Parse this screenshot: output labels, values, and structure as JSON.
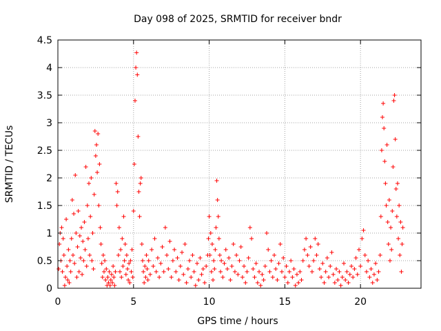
{
  "chart_data": {
    "type": "scatter",
    "title": "Day 098 of 2025, SRMTID for receiver bndr",
    "xlabel": "GPS time / hours",
    "ylabel": "SRMTID / TECUs",
    "xlim": [
      0,
      24
    ],
    "ylim": [
      0,
      4.5
    ],
    "xticks": [
      0,
      5,
      10,
      15,
      20
    ],
    "xtick_labels": [
      "0",
      "5",
      "10",
      "15",
      "20"
    ],
    "yticks": [
      0,
      0.5,
      1,
      1.5,
      2,
      2.5,
      3,
      3.5,
      4,
      4.5
    ],
    "ytick_labels": [
      "0",
      "0.5",
      "1",
      "1.5",
      "2",
      "2.5",
      "3",
      "3.5",
      "4",
      "4.5"
    ],
    "grid": true,
    "marker": "plus",
    "series": [
      {
        "name": "SRMTID",
        "color": "#ff0000",
        "points": [
          [
            0.05,
            0.35
          ],
          [
            0.1,
            0.8
          ],
          [
            0.15,
            1.0
          ],
          [
            0.2,
            0.5
          ],
          [
            0.25,
            1.1
          ],
          [
            0.3,
            0.3
          ],
          [
            0.35,
            0.9
          ],
          [
            0.4,
            0.6
          ],
          [
            0.45,
            0.05
          ],
          [
            0.5,
            0.2
          ],
          [
            0.55,
            1.25
          ],
          [
            0.6,
            0.4
          ],
          [
            0.65,
            0.15
          ],
          [
            0.7,
            0.7
          ],
          [
            0.75,
            0.1
          ],
          [
            0.8,
            0.5
          ],
          [
            0.85,
            0.3
          ],
          [
            0.9,
            0.9
          ],
          [
            0.95,
            1.6
          ],
          [
            1.0,
            0.6
          ],
          [
            1.05,
            1.35
          ],
          [
            1.1,
            0.45
          ],
          [
            1.15,
            2.05
          ],
          [
            1.2,
            1.0
          ],
          [
            1.25,
            0.2
          ],
          [
            1.3,
            0.75
          ],
          [
            1.35,
            1.4
          ],
          [
            1.4,
            0.3
          ],
          [
            1.45,
            0.95
          ],
          [
            1.5,
            0.55
          ],
          [
            1.55,
            1.1
          ],
          [
            1.6,
            0.25
          ],
          [
            1.65,
            0.85
          ],
          [
            1.7,
            0.5
          ],
          [
            1.75,
            1.2
          ],
          [
            1.8,
            0.7
          ],
          [
            1.85,
            2.2
          ],
          [
            1.9,
            0.4
          ],
          [
            1.95,
            1.5
          ],
          [
            2.0,
            0.9
          ],
          [
            2.05,
            1.9
          ],
          [
            2.1,
            0.6
          ],
          [
            2.15,
            1.3
          ],
          [
            2.2,
            2.0
          ],
          [
            2.25,
            0.5
          ],
          [
            2.3,
            1.0
          ],
          [
            2.35,
            0.35
          ],
          [
            2.4,
            1.7
          ],
          [
            2.45,
            2.85
          ],
          [
            2.5,
            2.4
          ],
          [
            2.55,
            2.6
          ],
          [
            2.6,
            2.1
          ],
          [
            2.65,
            2.8
          ],
          [
            2.7,
            1.5
          ],
          [
            2.75,
            2.25
          ],
          [
            2.8,
            1.1
          ],
          [
            2.85,
            0.8
          ],
          [
            2.9,
            0.45
          ],
          [
            2.95,
            0.2
          ],
          [
            3.0,
            0.6
          ],
          [
            3.05,
            0.3
          ],
          [
            3.1,
            0.5
          ],
          [
            3.15,
            0.15
          ],
          [
            3.2,
            0.35
          ],
          [
            3.25,
            0.05
          ],
          [
            3.3,
            0.2
          ],
          [
            3.35,
            0.1
          ],
          [
            3.4,
            0.3
          ],
          [
            3.45,
            0.05
          ],
          [
            3.5,
            0.15
          ],
          [
            3.55,
            0.25
          ],
          [
            3.6,
            0.1
          ],
          [
            3.65,
            0.4
          ],
          [
            3.7,
            0.2
          ],
          [
            3.75,
            0.05
          ],
          [
            3.8,
            0.3
          ],
          [
            3.85,
            1.9
          ],
          [
            3.9,
            1.5
          ],
          [
            3.95,
            1.75
          ],
          [
            4.0,
            0.6
          ],
          [
            4.05,
            1.1
          ],
          [
            4.1,
            0.3
          ],
          [
            4.15,
            0.7
          ],
          [
            4.2,
            0.2
          ],
          [
            4.25,
            0.9
          ],
          [
            4.3,
            0.4
          ],
          [
            4.35,
            1.3
          ],
          [
            4.4,
            0.5
          ],
          [
            4.45,
            0.8
          ],
          [
            4.5,
            0.25
          ],
          [
            4.55,
            0.6
          ],
          [
            4.6,
            0.35
          ],
          [
            4.65,
            0.15
          ],
          [
            4.7,
            0.45
          ],
          [
            4.75,
            0.1
          ],
          [
            4.8,
            0.5
          ],
          [
            4.85,
            0.3
          ],
          [
            4.9,
            0.7
          ],
          [
            4.95,
            0.2
          ],
          [
            5.0,
            1.4
          ],
          [
            5.05,
            2.25
          ],
          [
            5.1,
            3.4
          ],
          [
            5.15,
            4.0
          ],
          [
            5.2,
            4.27
          ],
          [
            5.25,
            3.87
          ],
          [
            5.3,
            2.75
          ],
          [
            5.35,
            1.75
          ],
          [
            5.4,
            1.3
          ],
          [
            5.45,
            1.9
          ],
          [
            5.5,
            2.0
          ],
          [
            5.55,
            0.8
          ],
          [
            5.6,
            0.5
          ],
          [
            5.65,
            0.3
          ],
          [
            5.7,
            0.1
          ],
          [
            5.75,
            0.4
          ],
          [
            5.8,
            0.2
          ],
          [
            5.85,
            0.6
          ],
          [
            5.9,
            0.35
          ],
          [
            5.95,
            0.15
          ],
          [
            6.0,
            0.5
          ],
          [
            6.1,
            0.25
          ],
          [
            6.2,
            0.7
          ],
          [
            6.3,
            0.4
          ],
          [
            6.4,
            0.9
          ],
          [
            6.5,
            0.3
          ],
          [
            6.6,
            0.55
          ],
          [
            6.7,
            0.2
          ],
          [
            6.8,
            0.45
          ],
          [
            6.9,
            0.75
          ],
          [
            7.0,
            0.3
          ],
          [
            7.1,
            1.1
          ],
          [
            7.2,
            0.6
          ],
          [
            7.3,
            0.35
          ],
          [
            7.4,
            0.85
          ],
          [
            7.5,
            0.2
          ],
          [
            7.6,
            0.5
          ],
          [
            7.7,
            0.7
          ],
          [
            7.8,
            0.3
          ],
          [
            7.9,
            0.55
          ],
          [
            8.0,
            0.15
          ],
          [
            8.1,
            0.4
          ],
          [
            8.2,
            0.65
          ],
          [
            8.3,
            0.25
          ],
          [
            8.4,
            0.8
          ],
          [
            8.5,
            0.1
          ],
          [
            8.6,
            0.35
          ],
          [
            8.7,
            0.5
          ],
          [
            8.8,
            0.2
          ],
          [
            8.9,
            0.6
          ],
          [
            9.0,
            0.3
          ],
          [
            9.1,
            0.05
          ],
          [
            9.2,
            0.45
          ],
          [
            9.3,
            0.15
          ],
          [
            9.4,
            0.55
          ],
          [
            9.5,
            0.25
          ],
          [
            9.6,
            0.35
          ],
          [
            9.7,
            0.1
          ],
          [
            9.8,
            0.4
          ],
          [
            9.9,
            0.6
          ],
          [
            9.95,
            0.9
          ],
          [
            10.0,
            1.3
          ],
          [
            10.05,
            0.6
          ],
          [
            10.1,
            1.0
          ],
          [
            10.15,
            0.3
          ],
          [
            10.2,
            0.8
          ],
          [
            10.25,
            0.15
          ],
          [
            10.3,
            0.5
          ],
          [
            10.35,
            0.35
          ],
          [
            10.4,
            0.7
          ],
          [
            10.45,
            1.1
          ],
          [
            10.5,
            1.95
          ],
          [
            10.55,
            1.6
          ],
          [
            10.6,
            1.3
          ],
          [
            10.65,
            0.9
          ],
          [
            10.7,
            0.6
          ],
          [
            10.75,
            0.3
          ],
          [
            10.8,
            0.5
          ],
          [
            10.9,
            0.2
          ],
          [
            11.0,
            0.45
          ],
          [
            11.1,
            0.7
          ],
          [
            11.2,
            0.35
          ],
          [
            11.3,
            0.55
          ],
          [
            11.4,
            0.15
          ],
          [
            11.5,
            0.4
          ],
          [
            11.6,
            0.8
          ],
          [
            11.7,
            0.3
          ],
          [
            11.8,
            0.6
          ],
          [
            11.9,
            0.25
          ],
          [
            12.0,
            0.5
          ],
          [
            12.1,
            0.75
          ],
          [
            12.2,
            0.2
          ],
          [
            12.3,
            0.4
          ],
          [
            12.4,
            0.1
          ],
          [
            12.5,
            0.3
          ],
          [
            12.6,
            0.55
          ],
          [
            12.7,
            1.1
          ],
          [
            12.8,
            0.9
          ],
          [
            12.9,
            0.35
          ],
          [
            13.0,
            0.2
          ],
          [
            13.1,
            0.45
          ],
          [
            13.2,
            0.1
          ],
          [
            13.3,
            0.3
          ],
          [
            13.4,
            0.05
          ],
          [
            13.5,
            0.25
          ],
          [
            13.6,
            0.15
          ],
          [
            13.7,
            0.4
          ],
          [
            13.8,
            1.0
          ],
          [
            13.9,
            0.7
          ],
          [
            14.0,
            0.3
          ],
          [
            14.1,
            0.5
          ],
          [
            14.2,
            0.2
          ],
          [
            14.3,
            0.6
          ],
          [
            14.4,
            0.35
          ],
          [
            14.5,
            0.15
          ],
          [
            14.6,
            0.45
          ],
          [
            14.7,
            0.8
          ],
          [
            14.8,
            0.3
          ],
          [
            14.9,
            0.55
          ],
          [
            15.0,
            0.2
          ],
          [
            15.1,
            0.4
          ],
          [
            15.2,
            0.1
          ],
          [
            15.3,
            0.3
          ],
          [
            15.4,
            0.5
          ],
          [
            15.5,
            0.2
          ],
          [
            15.6,
            0.35
          ],
          [
            15.7,
            0.05
          ],
          [
            15.8,
            0.25
          ],
          [
            15.9,
            0.1
          ],
          [
            16.0,
            0.3
          ],
          [
            16.1,
            0.15
          ],
          [
            16.2,
            0.5
          ],
          [
            16.3,
            0.7
          ],
          [
            16.4,
            0.9
          ],
          [
            16.5,
            0.6
          ],
          [
            16.6,
            0.4
          ],
          [
            16.7,
            0.75
          ],
          [
            16.8,
            0.3
          ],
          [
            16.9,
            0.5
          ],
          [
            17.0,
            0.9
          ],
          [
            17.1,
            0.6
          ],
          [
            17.2,
            0.8
          ],
          [
            17.3,
            0.35
          ],
          [
            17.4,
            0.2
          ],
          [
            17.5,
            0.45
          ],
          [
            17.6,
            0.1
          ],
          [
            17.7,
            0.3
          ],
          [
            17.8,
            0.55
          ],
          [
            17.9,
            0.2
          ],
          [
            18.0,
            0.4
          ],
          [
            18.1,
            0.65
          ],
          [
            18.2,
            0.25
          ],
          [
            18.3,
            0.1
          ],
          [
            18.4,
            0.35
          ],
          [
            18.5,
            0.15
          ],
          [
            18.6,
            0.3
          ],
          [
            18.7,
            0.05
          ],
          [
            18.8,
            0.2
          ],
          [
            18.9,
            0.45
          ],
          [
            19.0,
            0.15
          ],
          [
            19.1,
            0.3
          ],
          [
            19.2,
            0.1
          ],
          [
            19.3,
            0.25
          ],
          [
            19.4,
            0.4
          ],
          [
            19.5,
            0.2
          ],
          [
            19.6,
            0.35
          ],
          [
            19.7,
            0.55
          ],
          [
            19.8,
            0.25
          ],
          [
            19.9,
            0.7
          ],
          [
            20.0,
            0.4
          ],
          [
            20.1,
            0.9
          ],
          [
            20.2,
            1.05
          ],
          [
            20.3,
            0.6
          ],
          [
            20.4,
            0.3
          ],
          [
            20.5,
            0.5
          ],
          [
            20.6,
            0.2
          ],
          [
            20.7,
            0.35
          ],
          [
            20.8,
            0.1
          ],
          [
            20.9,
            0.25
          ],
          [
            21.0,
            0.45
          ],
          [
            21.1,
            0.15
          ],
          [
            21.2,
            0.3
          ],
          [
            21.3,
            0.6
          ],
          [
            21.35,
            1.3
          ],
          [
            21.4,
            2.5
          ],
          [
            21.45,
            3.1
          ],
          [
            21.5,
            3.35
          ],
          [
            21.55,
            2.9
          ],
          [
            21.6,
            2.3
          ],
          [
            21.65,
            1.9
          ],
          [
            21.7,
            1.5
          ],
          [
            21.75,
            2.6
          ],
          [
            21.8,
            1.2
          ],
          [
            21.85,
            0.8
          ],
          [
            21.9,
            1.6
          ],
          [
            21.95,
            0.5
          ],
          [
            22.0,
            1.1
          ],
          [
            22.05,
            0.7
          ],
          [
            22.1,
            1.4
          ],
          [
            22.15,
            2.2
          ],
          [
            22.2,
            3.4
          ],
          [
            22.25,
            3.5
          ],
          [
            22.3,
            2.7
          ],
          [
            22.35,
            1.8
          ],
          [
            22.4,
            1.3
          ],
          [
            22.45,
            1.9
          ],
          [
            22.5,
            0.9
          ],
          [
            22.55,
            1.5
          ],
          [
            22.6,
            0.6
          ],
          [
            22.65,
            1.2
          ],
          [
            22.7,
            0.3
          ],
          [
            22.75,
            0.8
          ],
          [
            22.8,
            1.1
          ]
        ]
      }
    ]
  }
}
